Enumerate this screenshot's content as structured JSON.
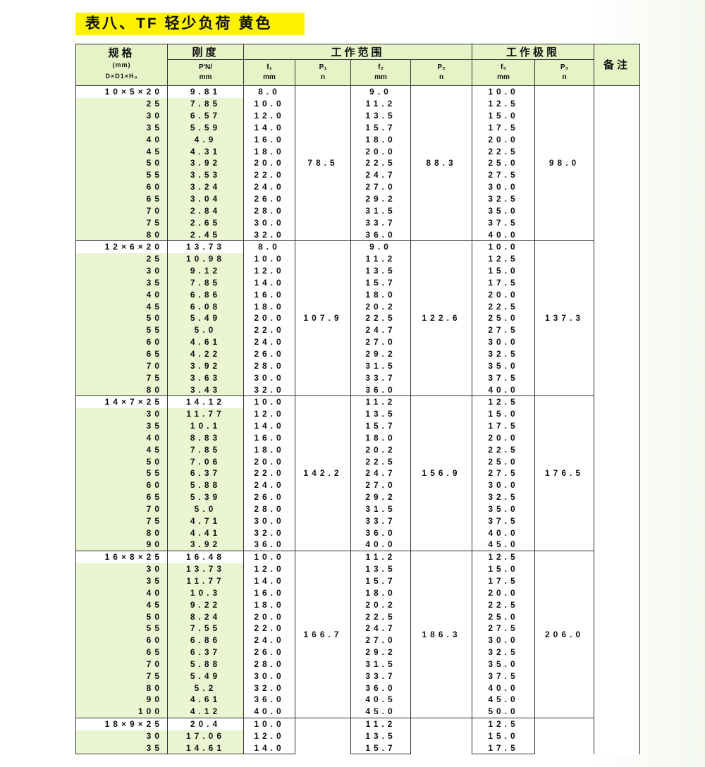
{
  "title": "表八、TF 轻少负荷 黄色",
  "header": {
    "spec": "规格",
    "spec_unit": "(mm)",
    "spec_dims": "D×D1×H₀",
    "stiffness": "刚度",
    "stiffness_unit_1": "P'N/",
    "stiffness_unit_2": "mm",
    "working_range": "工作范围",
    "working_limit": "工作极限",
    "remark": "备注",
    "f1": "f₁",
    "f1_unit": "mm",
    "p1": "P₁",
    "p1_unit": "n",
    "f2": "f₂",
    "f2_unit": "mm",
    "p2": "P₂",
    "p2_unit": "n",
    "f3": "f₃",
    "f3_unit": "mm",
    "p3": "P₃",
    "p3_unit": "n"
  },
  "groups": [
    {
      "p1": "78.5",
      "p2": "88.3",
      "p3": "98.0",
      "rows": [
        [
          "10×5×20",
          "9.81",
          "8.0",
          "9.0",
          "10.0"
        ],
        [
          "25",
          "7.85",
          "10.0",
          "11.2",
          "12.5"
        ],
        [
          "30",
          "6.57",
          "12.0",
          "13.5",
          "15.0"
        ],
        [
          "35",
          "5.59",
          "14.0",
          "15.7",
          "17.5"
        ],
        [
          "40",
          "4.9",
          "16.0",
          "18.0",
          "20.0"
        ],
        [
          "45",
          "4.31",
          "18.0",
          "20.0",
          "22.5"
        ],
        [
          "50",
          "3.92",
          "20.0",
          "22.5",
          "25.0"
        ],
        [
          "55",
          "3.53",
          "22.0",
          "24.7",
          "27.5"
        ],
        [
          "60",
          "3.24",
          "24.0",
          "27.0",
          "30.0"
        ],
        [
          "65",
          "3.04",
          "26.0",
          "29.2",
          "32.5"
        ],
        [
          "70",
          "2.84",
          "28.0",
          "31.5",
          "35.0"
        ],
        [
          "75",
          "2.65",
          "30.0",
          "33.7",
          "37.5"
        ],
        [
          "80",
          "2.45",
          "32.0",
          "36.0",
          "40.0"
        ]
      ]
    },
    {
      "p1": "107.9",
      "p2": "122.6",
      "p3": "137.3",
      "rows": [
        [
          "12×6×20",
          "13.73",
          "8.0",
          "9.0",
          "10.0"
        ],
        [
          "25",
          "10.98",
          "10.0",
          "11.2",
          "12.5"
        ],
        [
          "30",
          "9.12",
          "12.0",
          "13.5",
          "15.0"
        ],
        [
          "35",
          "7.85",
          "14.0",
          "15.7",
          "17.5"
        ],
        [
          "40",
          "6.86",
          "16.0",
          "18.0",
          "20.0"
        ],
        [
          "45",
          "6.08",
          "18.0",
          "20.2",
          "22.5"
        ],
        [
          "50",
          "5.49",
          "20.0",
          "22.5",
          "25.0"
        ],
        [
          "55",
          "5.0",
          "22.0",
          "24.7",
          "27.5"
        ],
        [
          "60",
          "4.61",
          "24.0",
          "27.0",
          "30.0"
        ],
        [
          "65",
          "4.22",
          "26.0",
          "29.2",
          "32.5"
        ],
        [
          "70",
          "3.92",
          "28.0",
          "31.5",
          "35.0"
        ],
        [
          "75",
          "3.63",
          "30.0",
          "33.7",
          "37.5"
        ],
        [
          "80",
          "3.43",
          "32.0",
          "36.0",
          "40.0"
        ]
      ]
    },
    {
      "p1": "142.2",
      "p2": "156.9",
      "p3": "176.5",
      "rows": [
        [
          "14×7×25",
          "14.12",
          "10.0",
          "11.2",
          "12.5"
        ],
        [
          "30",
          "11.77",
          "12.0",
          "13.5",
          "15.0"
        ],
        [
          "35",
          "10.1",
          "14.0",
          "15.7",
          "17.5"
        ],
        [
          "40",
          "8.83",
          "16.0",
          "18.0",
          "20.0"
        ],
        [
          "45",
          "7.85",
          "18.0",
          "20.2",
          "22.5"
        ],
        [
          "50",
          "7.06",
          "20.0",
          "22.5",
          "25.0"
        ],
        [
          "55",
          "6.37",
          "22.0",
          "24.7",
          "27.5"
        ],
        [
          "60",
          "5.88",
          "24.0",
          "27.0",
          "30.0"
        ],
        [
          "65",
          "5.39",
          "26.0",
          "29.2",
          "32.5"
        ],
        [
          "70",
          "5.0",
          "28.0",
          "31.5",
          "35.0"
        ],
        [
          "75",
          "4.71",
          "30.0",
          "33.7",
          "37.5"
        ],
        [
          "80",
          "4.41",
          "32.0",
          "36.0",
          "40.0"
        ],
        [
          "90",
          "3.92",
          "36.0",
          "40.0",
          "45.0"
        ]
      ]
    },
    {
      "p1": "166.7",
      "p2": "186.3",
      "p3": "206.0",
      "rows": [
        [
          "16×8×25",
          "16.48",
          "10.0",
          "11.2",
          "12.5"
        ],
        [
          "30",
          "13.73",
          "12.0",
          "13.5",
          "15.0"
        ],
        [
          "35",
          "11.77",
          "14.0",
          "15.7",
          "17.5"
        ],
        [
          "40",
          "10.3",
          "16.0",
          "18.0",
          "20.0"
        ],
        [
          "45",
          "9.22",
          "18.0",
          "20.2",
          "22.5"
        ],
        [
          "50",
          "8.24",
          "20.0",
          "22.5",
          "25.0"
        ],
        [
          "55",
          "7.55",
          "22.0",
          "24.7",
          "27.5"
        ],
        [
          "60",
          "6.86",
          "24.0",
          "27.0",
          "30.0"
        ],
        [
          "65",
          "6.37",
          "26.0",
          "29.2",
          "32.5"
        ],
        [
          "70",
          "5.88",
          "28.0",
          "31.5",
          "35.0"
        ],
        [
          "75",
          "5.49",
          "30.0",
          "33.7",
          "37.5"
        ],
        [
          "80",
          "5.2",
          "32.0",
          "36.0",
          "40.0"
        ],
        [
          "90",
          "4.61",
          "36.0",
          "40.5",
          "45.0"
        ],
        [
          "100",
          "4.12",
          "40.0",
          "45.0",
          "50.0"
        ]
      ]
    },
    {
      "p1": "",
      "p2": "",
      "p3": "",
      "rows": [
        [
          "18×9×25",
          "20.4",
          "10.0",
          "11.2",
          "12.5"
        ],
        [
          "30",
          "17.06",
          "12.0",
          "13.5",
          "15.0"
        ],
        [
          "35",
          "14.61",
          "14.0",
          "15.7",
          "17.5"
        ]
      ]
    }
  ]
}
